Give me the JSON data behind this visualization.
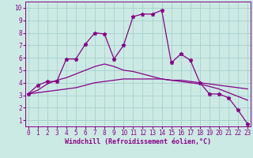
{
  "xlabel": "Windchill (Refroidissement éolien,°C)",
  "bg_color": "#cceae4",
  "line_color": "#880088",
  "grid_color": "#aad4cc",
  "x_ticks": [
    0,
    1,
    2,
    3,
    4,
    5,
    6,
    7,
    8,
    9,
    10,
    11,
    12,
    13,
    14,
    15,
    16,
    17,
    18,
    19,
    20,
    21,
    22,
    23
  ],
  "y_ticks": [
    1,
    2,
    3,
    4,
    5,
    6,
    7,
    8,
    9,
    10
  ],
  "xlim": [
    -0.3,
    23.3
  ],
  "ylim": [
    0.5,
    10.5
  ],
  "series1_x": [
    0,
    1,
    2,
    3,
    4,
    5,
    6,
    7,
    8,
    9,
    10,
    11,
    12,
    13,
    14,
    15,
    16,
    17,
    18,
    19,
    20,
    21,
    22,
    23
  ],
  "series1_y": [
    3.1,
    3.8,
    4.1,
    4.1,
    5.9,
    5.9,
    7.1,
    8.0,
    7.9,
    5.9,
    7.0,
    9.3,
    9.5,
    9.5,
    9.8,
    5.6,
    6.3,
    5.8,
    4.0,
    3.1,
    3.1,
    2.8,
    1.8,
    0.7
  ],
  "series2_x": [
    0,
    1,
    2,
    3,
    4,
    5,
    6,
    7,
    8,
    9,
    10,
    11,
    12,
    13,
    14,
    15,
    16,
    17,
    18,
    19,
    20,
    21,
    22,
    23
  ],
  "series2_y": [
    3.1,
    3.4,
    3.9,
    4.2,
    4.4,
    4.7,
    5.0,
    5.3,
    5.5,
    5.3,
    5.0,
    4.9,
    4.7,
    4.5,
    4.3,
    4.2,
    4.1,
    4.0,
    3.9,
    3.7,
    3.5,
    3.2,
    2.9,
    2.6
  ],
  "series3_x": [
    0,
    1,
    2,
    3,
    4,
    5,
    6,
    7,
    8,
    9,
    10,
    11,
    12,
    13,
    14,
    15,
    16,
    17,
    18,
    19,
    20,
    21,
    22,
    23
  ],
  "series3_y": [
    3.1,
    3.2,
    3.3,
    3.4,
    3.5,
    3.6,
    3.8,
    4.0,
    4.1,
    4.2,
    4.3,
    4.3,
    4.3,
    4.3,
    4.3,
    4.2,
    4.2,
    4.1,
    4.0,
    3.9,
    3.8,
    3.7,
    3.6,
    3.5
  ],
  "tick_fontsize": 5.5,
  "xlabel_fontsize": 6.0,
  "marker": "*",
  "markersize": 3.5,
  "linewidth": 0.9
}
